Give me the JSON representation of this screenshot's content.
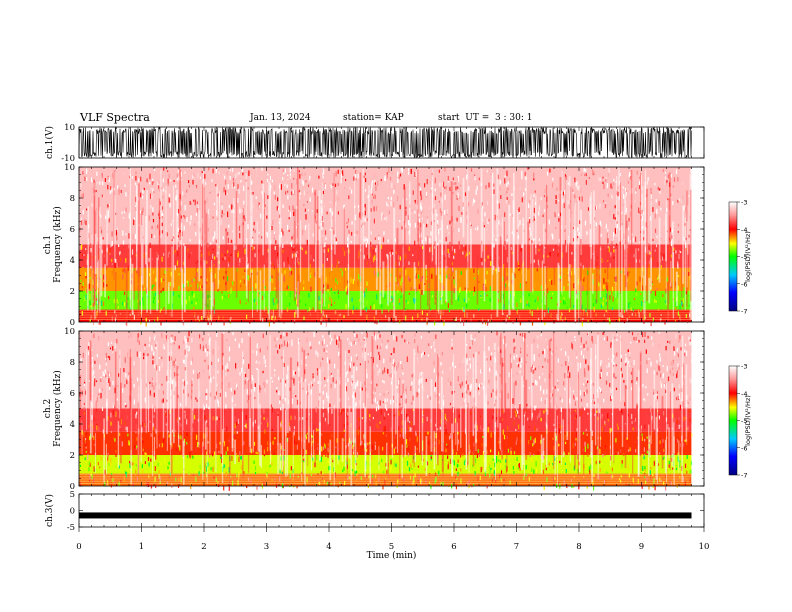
{
  "header": {
    "title": "VLF Spectra",
    "date": "Jan. 13, 2024",
    "station": "station= KAP",
    "start_ut": "start  UT =  3 : 30: 1"
  },
  "chart_data": [
    {
      "type": "line",
      "panel": "ch1-waveform",
      "ylabel": "ch.1(V)",
      "ylim": [
        -10,
        10
      ],
      "y_ticks": [
        "10",
        "-10"
      ],
      "xlim": [
        0,
        9.8
      ],
      "description_values": "dense oscillating voltage, amplitude about ±10 V"
    },
    {
      "type": "heatmap",
      "panel": "ch1-spectrogram",
      "ylabel": "ch.1 Frequency (kHz)",
      "ylim": [
        0,
        10
      ],
      "y_ticks": [
        "0",
        "2",
        "4",
        "6",
        "8",
        "10"
      ],
      "xlim": [
        0,
        9.8
      ],
      "colorbar": {
        "label": "log(PSD)(V²/Hz)",
        "range": [
          -7,
          -3
        ],
        "ticks": [
          "-3",
          "-4",
          "-5",
          "-6",
          "-7"
        ]
      },
      "bands": [
        {
          "freq_khz": [
            0,
            0.8
          ],
          "level": -4
        },
        {
          "freq_khz": [
            0.8,
            2.0
          ],
          "level": -4.8
        },
        {
          "freq_khz": [
            2.0,
            3.5
          ],
          "level": -4.3
        },
        {
          "freq_khz": [
            3.5,
            5.0
          ],
          "level": -3.8
        },
        {
          "freq_khz": [
            5.0,
            10.0
          ],
          "level": -3.3
        }
      ]
    },
    {
      "type": "heatmap",
      "panel": "ch2-spectrogram",
      "ylabel": "ch.2 Frequency (kHz)",
      "ylim": [
        0,
        10
      ],
      "y_ticks": [
        "0",
        "2",
        "4",
        "6",
        "8",
        "10"
      ],
      "xlim": [
        0,
        9.8
      ],
      "colorbar": {
        "label": "log(PSD)(V²/Hz)",
        "range": [
          -7,
          -3
        ],
        "ticks": [
          "-3",
          "-4",
          "-5",
          "-6",
          "-7"
        ]
      },
      "bands": [
        {
          "freq_khz": [
            0,
            0.8
          ],
          "level": -4.2
        },
        {
          "freq_khz": [
            0.8,
            2.0
          ],
          "level": -4.6
        },
        {
          "freq_khz": [
            2.0,
            3.5
          ],
          "level": -4.1
        },
        {
          "freq_khz": [
            3.5,
            5.0
          ],
          "level": -3.8
        },
        {
          "freq_khz": [
            5.0,
            10.0
          ],
          "level": -3.3
        }
      ]
    },
    {
      "type": "line",
      "panel": "ch3-waveform",
      "ylabel": "ch.3(V)",
      "ylim": [
        -5,
        5
      ],
      "y_ticks": [
        "5",
        "0",
        "-5"
      ],
      "xlim": [
        0,
        9.8
      ],
      "level": -1.5
    }
  ],
  "x_axis": {
    "label": "Time  (min)",
    "ticks": [
      "0",
      "1",
      "2",
      "3",
      "4",
      "5",
      "6",
      "7",
      "8",
      "9",
      "10"
    ],
    "xlim": [
      0,
      10
    ]
  }
}
